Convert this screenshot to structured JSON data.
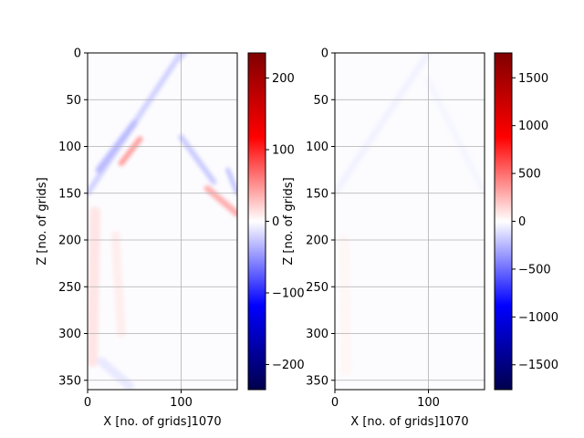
{
  "chart_data": [
    {
      "type": "heatmap",
      "colormap": "seismic",
      "xlabel": "X [no. of grids]1070",
      "ylabel": "Z [no. of grids]",
      "xlim": [
        0,
        160
      ],
      "ylim": [
        360,
        0
      ],
      "x_ticks": [
        0,
        100
      ],
      "y_ticks": [
        0,
        50,
        100,
        150,
        200,
        250,
        300,
        350
      ],
      "grid": true,
      "colorbar": {
        "vmin": -235,
        "vmax": 235,
        "ticks": [
          -200,
          -100,
          0,
          100,
          200
        ],
        "tick_labels": [
          "−200",
          "−100",
          "0",
          "100",
          "200"
        ]
      },
      "features": [
        {
          "shape": "line",
          "x1": 0,
          "z1": 150,
          "x2": 100,
          "z2": 0,
          "value": -22,
          "width": 6
        },
        {
          "shape": "line",
          "x1": 12,
          "z1": 125,
          "x2": 50,
          "z2": 75,
          "value": -32,
          "width": 7
        },
        {
          "shape": "line",
          "x1": 36,
          "z1": 118,
          "x2": 56,
          "z2": 92,
          "value": 45,
          "width": 6
        },
        {
          "shape": "line",
          "x1": 100,
          "z1": 90,
          "x2": 135,
          "z2": 138,
          "value": -25,
          "width": 6
        },
        {
          "shape": "line",
          "x1": 128,
          "z1": 145,
          "x2": 160,
          "z2": 172,
          "value": 38,
          "width": 7
        },
        {
          "shape": "line",
          "x1": 150,
          "z1": 125,
          "x2": 160,
          "z2": 150,
          "value": -28,
          "width": 5
        },
        {
          "shape": "line",
          "x1": 8,
          "z1": 170,
          "x2": 5,
          "z2": 330,
          "value": 12,
          "width": 12
        },
        {
          "shape": "line",
          "x1": 30,
          "z1": 195,
          "x2": 36,
          "z2": 300,
          "value": 8,
          "width": 10
        },
        {
          "shape": "line",
          "x1": 15,
          "z1": 330,
          "x2": 45,
          "z2": 356,
          "value": -10,
          "width": 10
        },
        {
          "shape": "line",
          "x1": 105,
          "z1": 0,
          "x2": 95,
          "z2": 10,
          "value": -20,
          "width": 4
        }
      ]
    },
    {
      "type": "heatmap",
      "colormap": "seismic",
      "xlabel": "X [no. of grids]1070",
      "ylabel": "Z [no. of grids]",
      "xlim": [
        0,
        160
      ],
      "ylim": [
        360,
        0
      ],
      "x_ticks": [
        0,
        100
      ],
      "y_ticks": [
        0,
        50,
        100,
        150,
        200,
        250,
        300,
        350
      ],
      "grid": true,
      "colorbar": {
        "vmin": -1760,
        "vmax": 1760,
        "ticks": [
          -1500,
          -1000,
          -500,
          0,
          500,
          1000,
          1500
        ],
        "tick_labels": [
          "−1500",
          "−1000",
          "−500",
          "0",
          "500",
          "1000",
          "1500"
        ]
      },
      "features": [
        {
          "shape": "line",
          "x1": 0,
          "z1": 150,
          "x2": 100,
          "z2": 0,
          "value": -40,
          "width": 8
        },
        {
          "shape": "line",
          "x1": 100,
          "z1": 30,
          "x2": 160,
          "z2": 150,
          "value": -30,
          "width": 8
        },
        {
          "shape": "line",
          "x1": 10,
          "z1": 200,
          "x2": 12,
          "z2": 340,
          "value": 30,
          "width": 12
        }
      ]
    }
  ]
}
